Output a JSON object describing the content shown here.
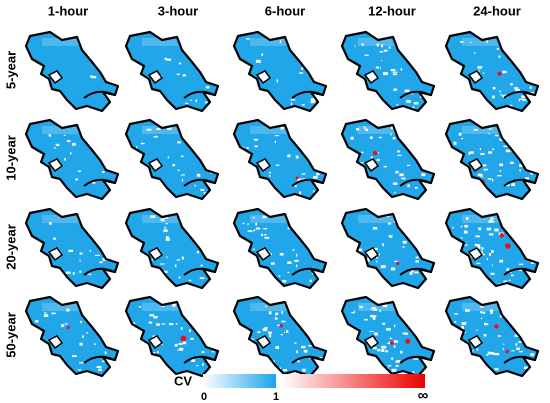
{
  "columns": [
    "1-hour",
    "3-hour",
    "6-hour",
    "12-hour",
    "24-hour"
  ],
  "rows": [
    "5-year",
    "10-year",
    "20-year",
    "50-year"
  ],
  "colorbar": {
    "label": "CV",
    "ticks": [
      "0",
      "1",
      "∞"
    ]
  }
}
